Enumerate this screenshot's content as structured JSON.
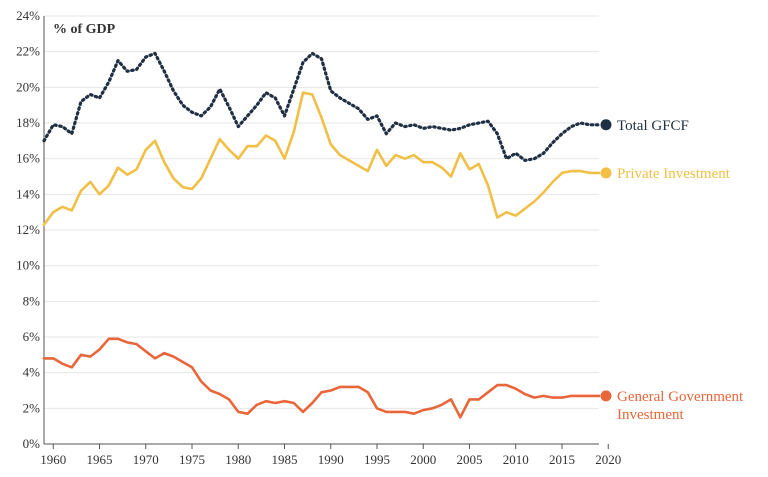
{
  "chart_data": {
    "type": "line",
    "ylabel": "% of GDP",
    "ylim": [
      0,
      24
    ],
    "yticks": [
      0,
      2,
      4,
      6,
      8,
      10,
      12,
      14,
      16,
      18,
      20,
      22,
      24
    ],
    "ytick_labels": [
      "0%",
      "2%",
      "4%",
      "6%",
      "8%",
      "10%",
      "12%",
      "14%",
      "16%",
      "18%",
      "20%",
      "22%",
      "24%"
    ],
    "xlim": [
      1959,
      2019
    ],
    "xticks": [
      1960,
      1965,
      1970,
      1975,
      1980,
      1985,
      1990,
      1995,
      2000,
      2005,
      2010,
      2015,
      2020
    ],
    "xtick_labels": [
      "1960",
      "1965",
      "1970",
      "1975",
      "1980",
      "1985",
      "1990",
      "1995",
      "2000",
      "2005",
      "2010",
      "2015",
      "2020"
    ],
    "grid": true,
    "x": [
      1959,
      1960,
      1961,
      1962,
      1963,
      1964,
      1965,
      1966,
      1967,
      1968,
      1969,
      1970,
      1971,
      1972,
      1973,
      1974,
      1975,
      1976,
      1977,
      1978,
      1979,
      1980,
      1981,
      1982,
      1983,
      1984,
      1985,
      1986,
      1987,
      1988,
      1989,
      1990,
      1991,
      1992,
      1993,
      1994,
      1995,
      1996,
      1997,
      1998,
      1999,
      2000,
      2001,
      2002,
      2003,
      2004,
      2005,
      2006,
      2007,
      2008,
      2009,
      2010,
      2011,
      2012,
      2013,
      2014,
      2015,
      2016,
      2017,
      2018,
      2019
    ],
    "series": [
      {
        "name": "Total GFCF",
        "label_lines": [
          "Total GFCF"
        ],
        "color": "#1f3044",
        "style": "dotted",
        "values": [
          17.0,
          17.9,
          17.8,
          17.4,
          19.2,
          19.6,
          19.4,
          20.3,
          21.5,
          20.9,
          21.0,
          21.7,
          21.9,
          20.9,
          19.8,
          19.0,
          18.6,
          18.4,
          18.9,
          19.9,
          18.9,
          17.8,
          18.4,
          19.0,
          19.7,
          19.4,
          18.4,
          19.9,
          21.4,
          21.9,
          21.6,
          19.8,
          19.4,
          19.1,
          18.8,
          18.2,
          18.4,
          17.4,
          18.0,
          17.8,
          17.9,
          17.7,
          17.8,
          17.7,
          17.6,
          17.7,
          17.9,
          18.0,
          18.1,
          17.4,
          16.0,
          16.3,
          15.9,
          16.0,
          16.3,
          16.9,
          17.4,
          17.8,
          18.0,
          17.9,
          17.9
        ]
      },
      {
        "name": "Private Investment",
        "label_lines": [
          "Private Investment"
        ],
        "color": "#f1bf45",
        "style": "solid",
        "values": [
          12.3,
          13.0,
          13.3,
          13.1,
          14.2,
          14.7,
          14.0,
          14.5,
          15.5,
          15.1,
          15.4,
          16.5,
          17.0,
          15.8,
          14.9,
          14.4,
          14.3,
          14.9,
          16.0,
          17.1,
          16.5,
          16.0,
          16.7,
          16.7,
          17.3,
          17.0,
          16.0,
          17.5,
          19.7,
          19.6,
          18.3,
          16.8,
          16.2,
          15.9,
          15.6,
          15.3,
          16.5,
          15.6,
          16.2,
          16.0,
          16.2,
          15.8,
          15.8,
          15.5,
          15.0,
          16.3,
          15.4,
          15.7,
          14.5,
          12.7,
          13.0,
          12.8,
          13.2,
          13.6,
          14.1,
          14.7,
          15.2,
          15.3,
          15.3,
          15.2,
          15.2
        ]
      },
      {
        "name": "General Government Investment",
        "label_lines": [
          "General Government",
          "Investment"
        ],
        "color": "#e8663a",
        "style": "solid",
        "values": [
          4.8,
          4.8,
          4.5,
          4.3,
          5.0,
          4.9,
          5.3,
          5.9,
          5.9,
          5.7,
          5.6,
          5.2,
          4.8,
          5.1,
          4.9,
          4.6,
          4.3,
          3.5,
          3.0,
          2.8,
          2.5,
          1.8,
          1.7,
          2.2,
          2.4,
          2.3,
          2.4,
          2.3,
          1.8,
          2.3,
          2.9,
          3.0,
          3.2,
          3.2,
          3.2,
          2.9,
          2.0,
          1.8,
          1.8,
          1.8,
          1.7,
          1.9,
          2.0,
          2.2,
          2.5,
          1.5,
          2.5,
          2.5,
          2.9,
          3.3,
          3.3,
          3.1,
          2.8,
          2.6,
          2.7,
          2.6,
          2.6,
          2.7,
          2.7,
          2.7,
          2.7
        ]
      }
    ]
  }
}
